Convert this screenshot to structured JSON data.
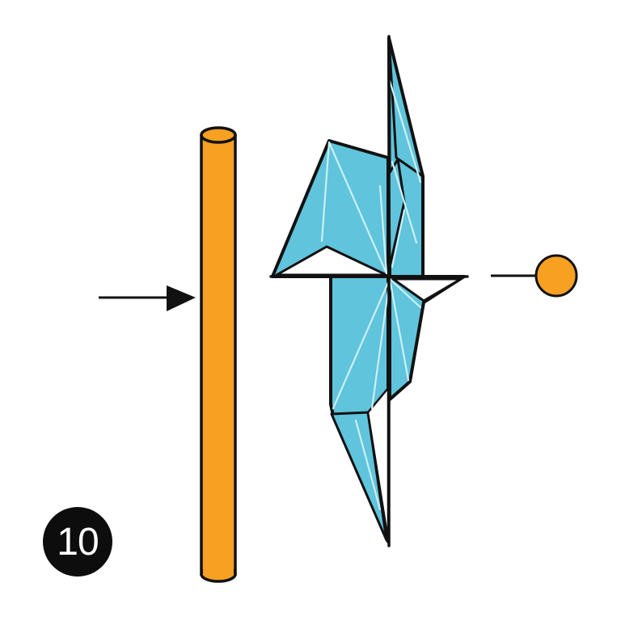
{
  "step": {
    "number": "10"
  },
  "colors": {
    "rod": "#F7A021",
    "rod_outline": "#111111",
    "paper": "#5FC4DC",
    "crease": "#CDEFF6",
    "outline": "#111111",
    "marker": "#F7A021",
    "badge": "#0D0D0D",
    "badge_text": "#FFFFFF"
  },
  "icons": {
    "direction_arrow": "right-arrow-icon",
    "view_marker": "orange-dot-icon"
  }
}
